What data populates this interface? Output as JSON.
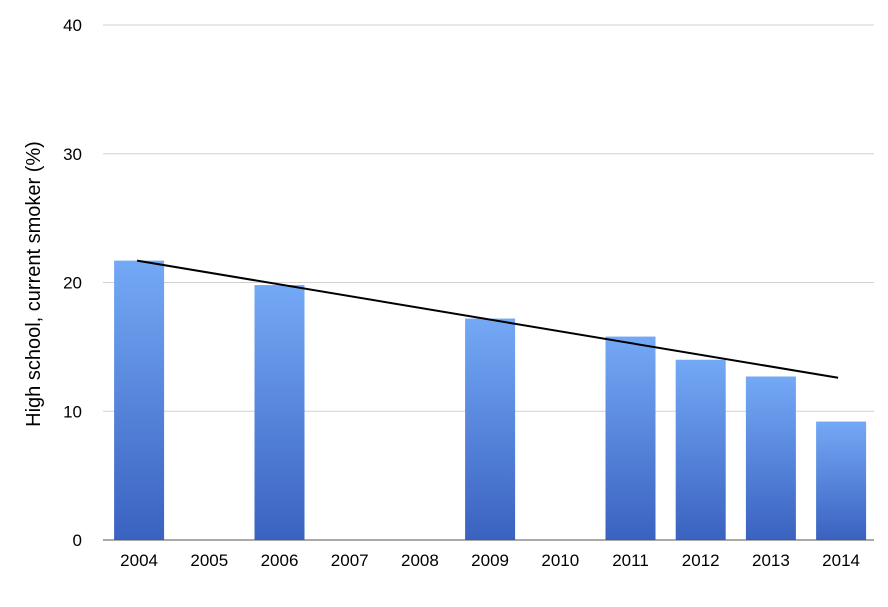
{
  "chart_data": {
    "type": "bar",
    "title": "",
    "xlabel": "",
    "ylabel": "High school, current smoker (%)",
    "ylim": [
      0,
      40
    ],
    "yticks": [
      0,
      10,
      20,
      30,
      40
    ],
    "grid": true,
    "categories": [
      "2004",
      "2005",
      "2006",
      "2007",
      "2008",
      "2009",
      "2010",
      "2011",
      "2012",
      "2013",
      "2014"
    ],
    "values": [
      21.7,
      null,
      19.8,
      null,
      null,
      17.2,
      null,
      15.8,
      14.0,
      12.7,
      9.2
    ],
    "trendline": {
      "start": {
        "x": "2004",
        "y": 21.7
      },
      "end": {
        "x": "2014",
        "y": 12.6
      }
    },
    "colors": {
      "bar_top": "#74a9f6",
      "bar_bottom": "#3a62c0",
      "trendline": "#000000",
      "grid": "#d0d0d0"
    }
  }
}
